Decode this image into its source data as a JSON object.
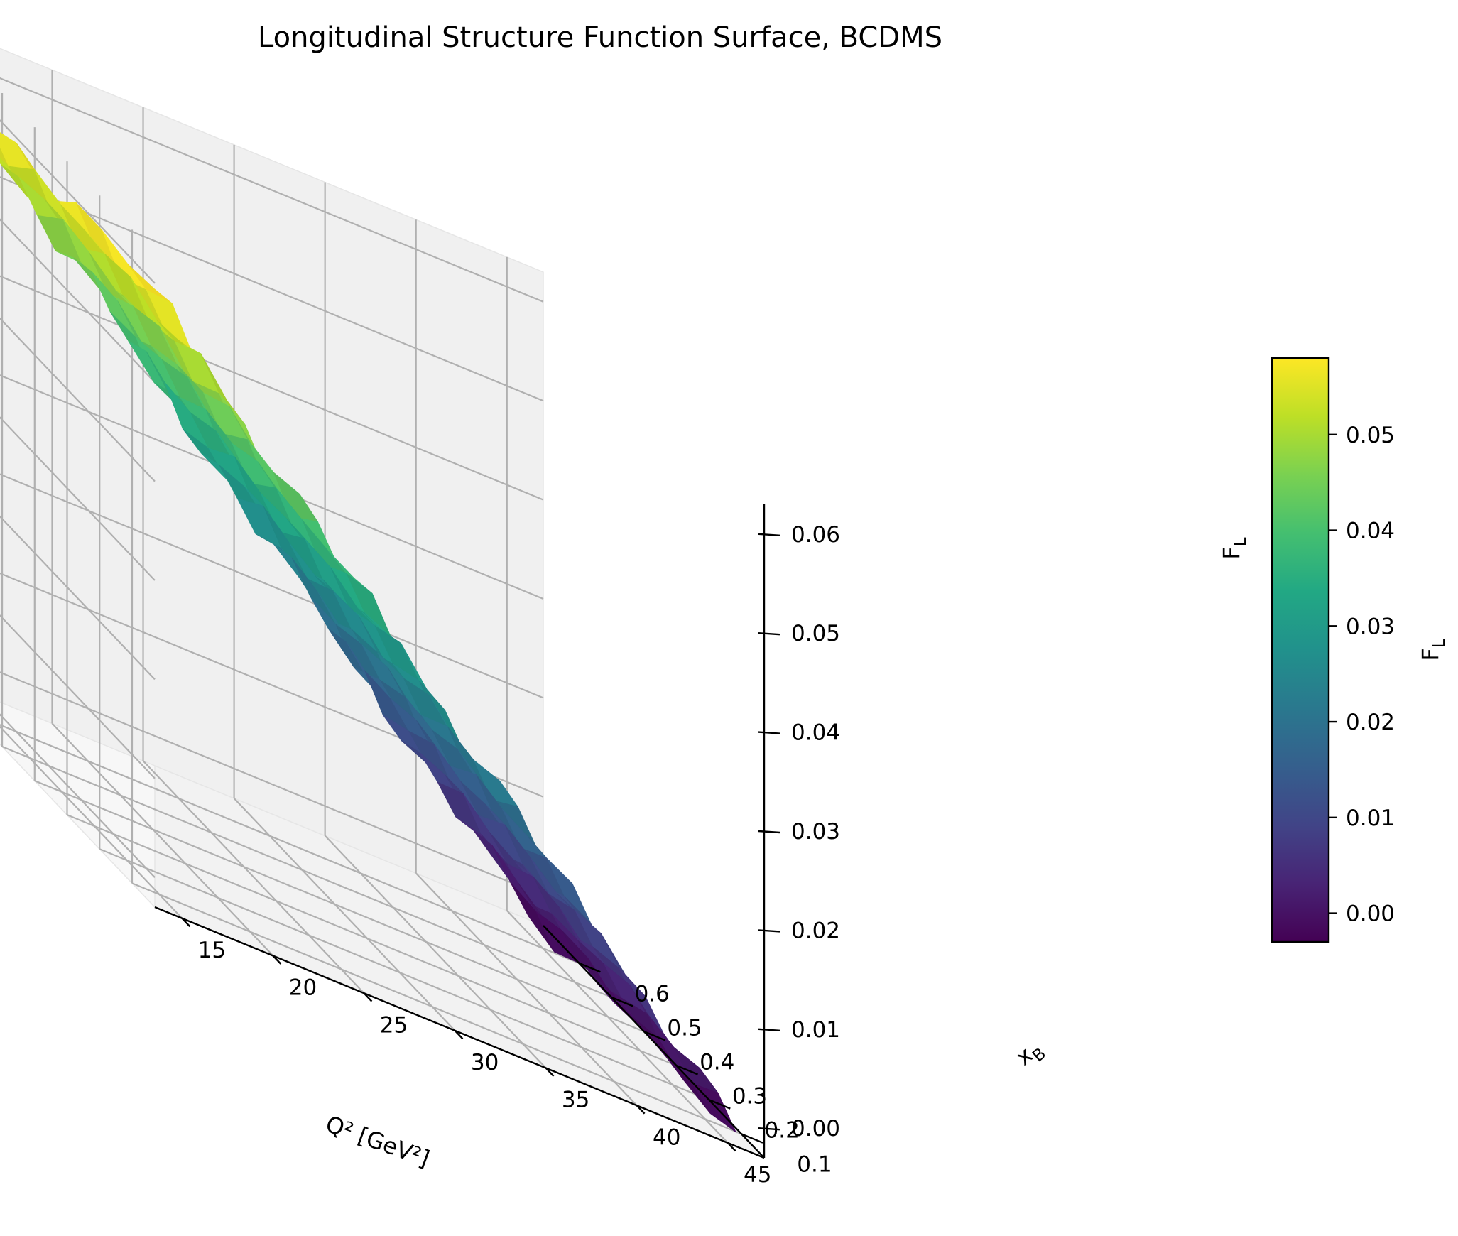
{
  "chart_data": {
    "type": "surface3d",
    "title": "Longitudinal Structure Function Surface, BCDMS",
    "x_axis": {
      "label": "Q² [GeV²]",
      "range": [
        13.5,
        47
      ],
      "ticks": [
        15,
        20,
        25,
        30,
        35,
        40,
        45
      ]
    },
    "y_axis": {
      "label": "x_B",
      "label_main": "x",
      "label_sub": "B",
      "range": [
        0.03,
        0.71
      ],
      "ticks": [
        0.1,
        0.2,
        0.3,
        0.4,
        0.5,
        0.6
      ]
    },
    "z_axis": {
      "label": "F_L",
      "label_main": "F",
      "label_sub": "L",
      "range": [
        -0.003,
        0.063
      ],
      "ticks": [
        0.0,
        0.01,
        0.02,
        0.03,
        0.04,
        0.05,
        0.06
      ],
      "tick_labels": [
        "0.00",
        "0.01",
        "0.02",
        "0.03",
        "0.04",
        "0.05",
        "0.06"
      ]
    },
    "colorbar": {
      "label": "F_L",
      "label_main": "F",
      "label_sub": "L",
      "colormap": "viridis",
      "range": [
        -0.003,
        0.058
      ],
      "ticks": [
        0.0,
        0.01,
        0.02,
        0.03,
        0.04,
        0.05
      ],
      "tick_labels": [
        "0.00",
        "0.01",
        "0.02",
        "0.03",
        "0.04",
        "0.05"
      ]
    },
    "surface": {
      "q2": [
        14,
        15,
        16,
        17,
        18,
        19,
        20,
        21,
        22,
        23,
        24,
        25,
        26,
        27,
        28,
        29,
        30,
        31,
        32,
        33,
        34,
        35,
        36,
        37,
        38,
        39,
        40,
        41,
        42,
        43,
        44,
        45,
        46
      ],
      "xb": [
        0.06,
        0.14,
        0.22,
        0.3,
        0.38,
        0.46,
        0.54,
        0.62,
        0.7
      ],
      "fl_at_low_q2": 0.058,
      "fl_at_high_q2": -0.002
    },
    "grid": true,
    "colorbar_position": "right"
  }
}
